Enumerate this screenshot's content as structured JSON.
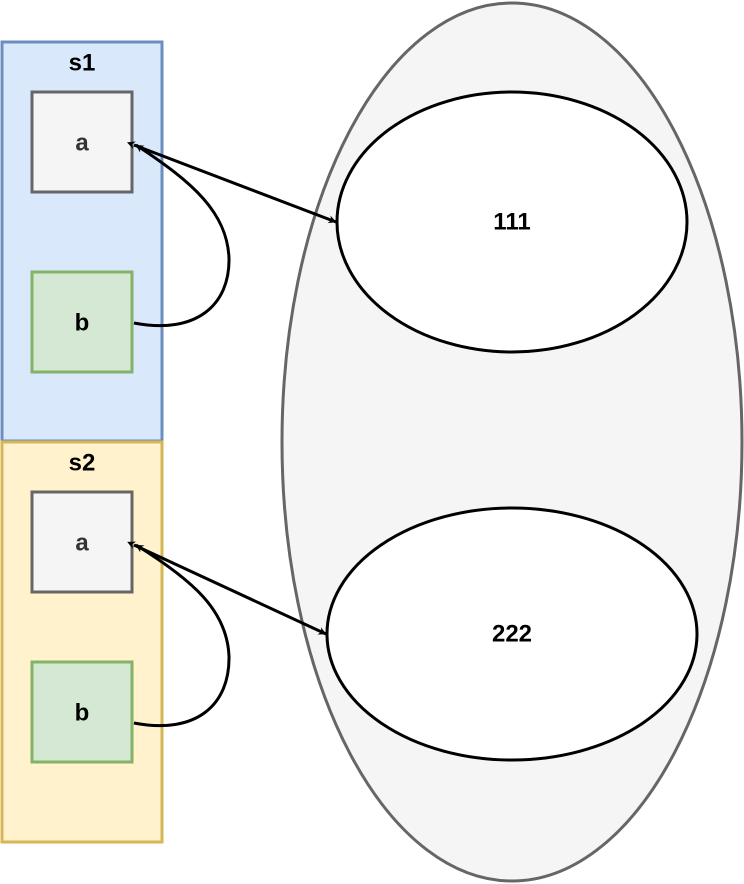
{
  "diagram": {
    "structs": [
      {
        "title": "s1",
        "fields": [
          {
            "label": "a"
          },
          {
            "label": "b"
          }
        ]
      },
      {
        "title": "s2",
        "fields": [
          {
            "label": "a"
          },
          {
            "label": "b"
          }
        ]
      }
    ],
    "values": [
      {
        "label": "111"
      },
      {
        "label": "222"
      }
    ]
  },
  "colors": {
    "s1_fill": "#dae8fc",
    "s1_stroke": "#6c8ebf",
    "s2_fill": "#fff2cc",
    "s2_stroke": "#d6b656",
    "field_a_fill": "#f5f5f5",
    "field_a_stroke": "#666666",
    "field_b_fill": "#d5e8d4",
    "field_b_stroke": "#82b366",
    "heap_fill": "#f5f5f5",
    "heap_stroke": "#666666",
    "value_fill": "#ffffff",
    "value_stroke": "#000000",
    "arrow": "#000000"
  }
}
